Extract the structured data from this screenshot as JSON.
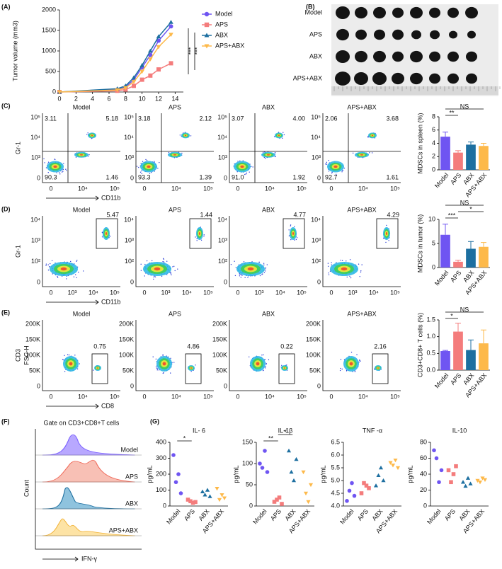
{
  "panel_labels": [
    "(A)",
    "(B)",
    "(C)",
    "(D)",
    "(E)",
    "(F)",
    "(G)"
  ],
  "photo": {
    "labels": [
      "Model",
      "APS",
      "ABX",
      "APS+ABX"
    ]
  },
  "flow": {
    "C": {
      "titles": [
        "Model",
        "APS",
        "ABX",
        "APS+ABX"
      ],
      "ylabel": "Gr-1",
      "xlabel": "CD11b",
      "yticks": [
        "10⁵",
        "10⁴",
        "10³",
        "0"
      ],
      "xticks": [
        "0",
        "10⁴",
        "10⁵"
      ],
      "gates": [
        [
          "3.11",
          "5.18",
          "90.3",
          "1.46"
        ],
        [
          "3.18",
          "2.12",
          "93.3",
          "1.39"
        ],
        [
          "3.07",
          "4.00",
          "91.0",
          "1.92"
        ],
        [
          "2.06",
          "3.68",
          "92.7",
          "1.61"
        ]
      ]
    },
    "D": {
      "titles": [
        "Model",
        "APS",
        "ABX",
        "APS+ABX"
      ],
      "ylabel": "Gr-1",
      "xlabel": "CD11b",
      "yticks": [
        "10⁴",
        "10³",
        "10²",
        "0"
      ],
      "xticks": [
        "0",
        "10³",
        "10⁴",
        "10⁵"
      ],
      "gates": [
        "5.47",
        "1.44",
        "4.77",
        "4.29"
      ]
    },
    "E": {
      "titles": [
        "Model",
        "APS",
        "ABX",
        "APS+ABX"
      ],
      "ylabel": "CD3",
      "ylabel2": "FSC-H",
      "xlabel": "CD8",
      "yticks": [
        "200K",
        "150K",
        "100K",
        "50K",
        "0"
      ],
      "xticks": [
        "0",
        "10⁴",
        "10⁵"
      ],
      "gates": [
        "0.75",
        "4.86",
        "0.22",
        "2.16"
      ]
    }
  },
  "histogram": {
    "title": "Gate on CD3+CD8+T cells",
    "labels": [
      "Model",
      "APS",
      "ABX",
      "APS+ABX"
    ],
    "ylabel": "Count",
    "xlabel": "IFN-γ"
  },
  "chart_data": [
    {
      "type": "line",
      "ylabel": "Tumor volume (mm3)",
      "x": [
        0,
        7,
        8,
        9,
        10,
        11,
        12,
        13.5
      ],
      "xlim": [
        0,
        15
      ],
      "xticks": [
        0,
        2,
        4,
        6,
        8,
        10,
        12,
        14
      ],
      "ylim": [
        0,
        2000
      ],
      "yticks": [
        0,
        500,
        1000,
        1500,
        2000
      ],
      "series": [
        {
          "name": "Model",
          "color": "#6f55f2",
          "values": [
            0,
            60,
            120,
            300,
            600,
            900,
            1250,
            1600
          ]
        },
        {
          "name": "APS",
          "color": "#f47c7c",
          "values": [
            0,
            30,
            60,
            150,
            300,
            400,
            550,
            700
          ]
        },
        {
          "name": "ABX",
          "color": "#1d6fa0",
          "values": [
            0,
            80,
            150,
            350,
            650,
            1000,
            1350,
            1700
          ]
        },
        {
          "name": "APS+ABX",
          "color": "#fdb94a",
          "values": [
            0,
            50,
            100,
            250,
            500,
            800,
            1100,
            1400
          ]
        }
      ],
      "annotations": [
        "***",
        "***"
      ]
    },
    {
      "type": "bar",
      "ylabel": "MDSCs in spleen (%)",
      "categories": [
        "Model",
        "APS",
        "ABX",
        "APS+ABX"
      ],
      "colors": [
        "#6f55f2",
        "#f47c7c",
        "#1d6fa0",
        "#fdb94a"
      ],
      "values": [
        5.0,
        2.6,
        3.8,
        3.6
      ],
      "errors": [
        0.7,
        0.3,
        0.4,
        0.4
      ],
      "ylim": [
        0,
        8
      ],
      "yticks": [
        0,
        2,
        4,
        6,
        8
      ],
      "annotations": [
        {
          "text": "**",
          "between": [
            "Model",
            "APS"
          ]
        },
        {
          "text": "NS",
          "between": [
            "Model",
            "APS+ABX"
          ]
        }
      ]
    },
    {
      "type": "bar",
      "ylabel": "MDSCs in tumor (%)",
      "categories": [
        "Model",
        "APS",
        "ABX",
        "APS+ABX"
      ],
      "colors": [
        "#6f55f2",
        "#f47c7c",
        "#1d6fa0",
        "#fdb94a"
      ],
      "values": [
        6.8,
        1.2,
        3.9,
        4.3
      ],
      "errors": [
        2.2,
        0.3,
        1.5,
        0.9
      ],
      "ylim": [
        0,
        10
      ],
      "yticks": [
        0,
        5,
        10
      ],
      "annotations": [
        {
          "text": "***",
          "between": [
            "Model",
            "APS"
          ]
        },
        {
          "text": "*",
          "between": [
            "APS",
            "APS+ABX"
          ]
        },
        {
          "text": "NS",
          "between": [
            "Model",
            "APS+ABX"
          ]
        }
      ]
    },
    {
      "type": "bar",
      "ylabel": "CD3+CD8+ T cells (%)",
      "categories": [
        "Model",
        "APS",
        "ABX",
        "APS+ABX"
      ],
      "colors": [
        "#6f55f2",
        "#f47c7c",
        "#1d6fa0",
        "#fdb94a"
      ],
      "values": [
        0.57,
        1.15,
        0.6,
        0.8
      ],
      "errors": [
        0.02,
        0.25,
        0.3,
        0.4
      ],
      "ylim": [
        0,
        1.5
      ],
      "yticks": [
        {
          "value": 0,
          "label": "0.0"
        },
        0.5,
        {
          "value": 1,
          "label": "1.0"
        },
        1.5
      ],
      "annotations": [
        {
          "text": "*",
          "between": [
            "Model",
            "APS"
          ]
        },
        {
          "text": "NS",
          "between": [
            "Model",
            "APS+ABX"
          ]
        }
      ]
    },
    {
      "type": "dot",
      "title": "IL- 6",
      "ylabel": "pg/mL",
      "categories": [
        "Model",
        "APS",
        "ABX",
        "APS+ABX"
      ],
      "colors": [
        "#6f55f2",
        "#f47c7c",
        "#1d6fa0",
        "#fdb94a"
      ],
      "values": [
        [
          320,
          150,
          200,
          80
        ],
        [
          40,
          30,
          20,
          25
        ],
        [
          90,
          70,
          100,
          60
        ],
        [
          110,
          40,
          70,
          50
        ]
      ],
      "ylim": [
        0,
        400
      ],
      "yticks": [
        0,
        100,
        200,
        300,
        400
      ],
      "annotations": [
        {
          "text": "*",
          "between": [
            "Model",
            "APS"
          ]
        }
      ]
    },
    {
      "type": "dot",
      "title": "IL-1β",
      "ylabel": "pg/mL",
      "categories": [
        "Model",
        "APS",
        "ABX",
        "APS+ABX"
      ],
      "colors": [
        "#6f55f2",
        "#f47c7c",
        "#1d6fa0",
        "#fdb94a"
      ],
      "values": [
        [
          100,
          90,
          130,
          80
        ],
        [
          10,
          15,
          20,
          5
        ],
        [
          130,
          80,
          60,
          110
        ],
        [
          80,
          30,
          10,
          50
        ]
      ],
      "ylim": [
        0,
        150
      ],
      "yticks": [
        0,
        50,
        100,
        150
      ],
      "annotations": [
        {
          "text": "**",
          "between": [
            "Model",
            "APS"
          ]
        },
        {
          "text": "*",
          "between": [
            "APS",
            "ABX"
          ]
        }
      ]
    },
    {
      "type": "dot",
      "title": "TNF -α",
      "ylabel": "pg/mL",
      "categories": [
        "Model",
        "APS",
        "ABX",
        "APS+ABX"
      ],
      "colors": [
        "#6f55f2",
        "#f47c7c",
        "#1d6fa0",
        "#fdb94a"
      ],
      "values": [
        [
          4.2,
          4.6,
          4.9,
          4.4
        ],
        [
          4.5,
          4.9,
          4.8,
          4.7
        ],
        [
          4.8,
          5.2,
          5.5,
          5.0
        ],
        [
          5.7,
          5.6,
          5.8,
          5.5
        ]
      ],
      "ylim": [
        4,
        6.5
      ],
      "yticks": [
        {
          "value": 4,
          "label": "4.0"
        },
        4.5,
        {
          "value": 5,
          "label": "5.0"
        },
        5.5,
        {
          "value": 6,
          "label": "6.0"
        },
        6.5
      ],
      "annotations": []
    },
    {
      "type": "dot",
      "title": "IL-10",
      "ylabel": "pg/mL",
      "categories": [
        "Model",
        "APS",
        "ABX",
        "APS+ABX"
      ],
      "colors": [
        "#6f55f2",
        "#f47c7c",
        "#1d6fa0",
        "#fdb94a"
      ],
      "values": [
        [
          70,
          60,
          30,
          45
        ],
        [
          45,
          30,
          40,
          50
        ],
        [
          30,
          25,
          35,
          28
        ],
        [
          32,
          30,
          35,
          33
        ]
      ],
      "ylim": [
        0,
        80
      ],
      "yticks": [
        0,
        20,
        40,
        60,
        80
      ],
      "annotations": []
    }
  ]
}
